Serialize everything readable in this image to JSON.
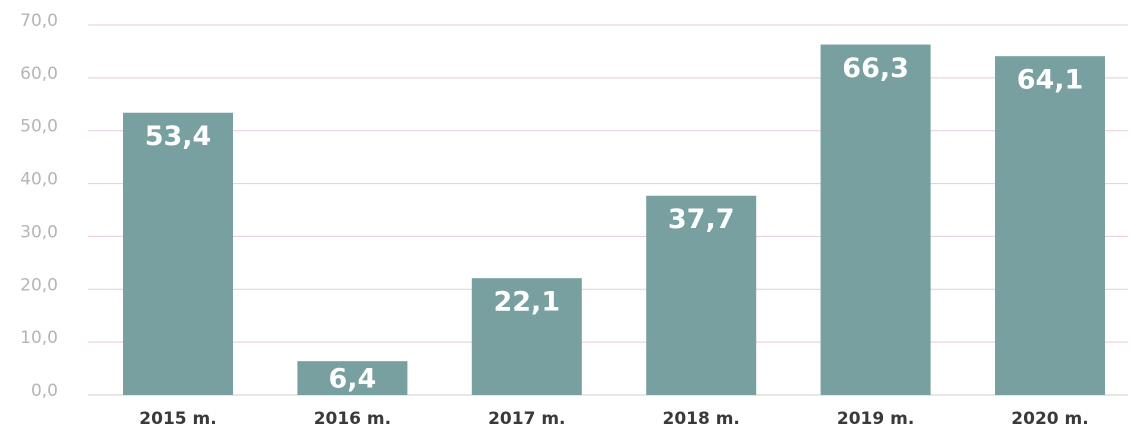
{
  "chart_data": {
    "type": "bar",
    "categories": [
      "2015 m.",
      "2016 m.",
      "2017 m.",
      "2018 m.",
      "2019 m.",
      "2020 m."
    ],
    "values": [
      53.4,
      6.4,
      22.1,
      37.7,
      66.3,
      64.1
    ],
    "value_labels": [
      "53,4",
      "6,4",
      "22,1",
      "37,7",
      "66,3",
      "64,1"
    ],
    "color": "#78a0a0",
    "ylim": [
      0,
      70
    ],
    "yticks": [
      {
        "value": 0,
        "label": "0,0"
      },
      {
        "value": 10,
        "label": "10,0"
      },
      {
        "value": 20,
        "label": "20,0"
      },
      {
        "value": 30,
        "label": "30,0"
      },
      {
        "value": 40,
        "label": "40,0"
      },
      {
        "value": 50,
        "label": "50,0"
      },
      {
        "value": 60,
        "label": "60,0"
      },
      {
        "value": 70,
        "label": "70,0"
      }
    ],
    "grid": true
  }
}
